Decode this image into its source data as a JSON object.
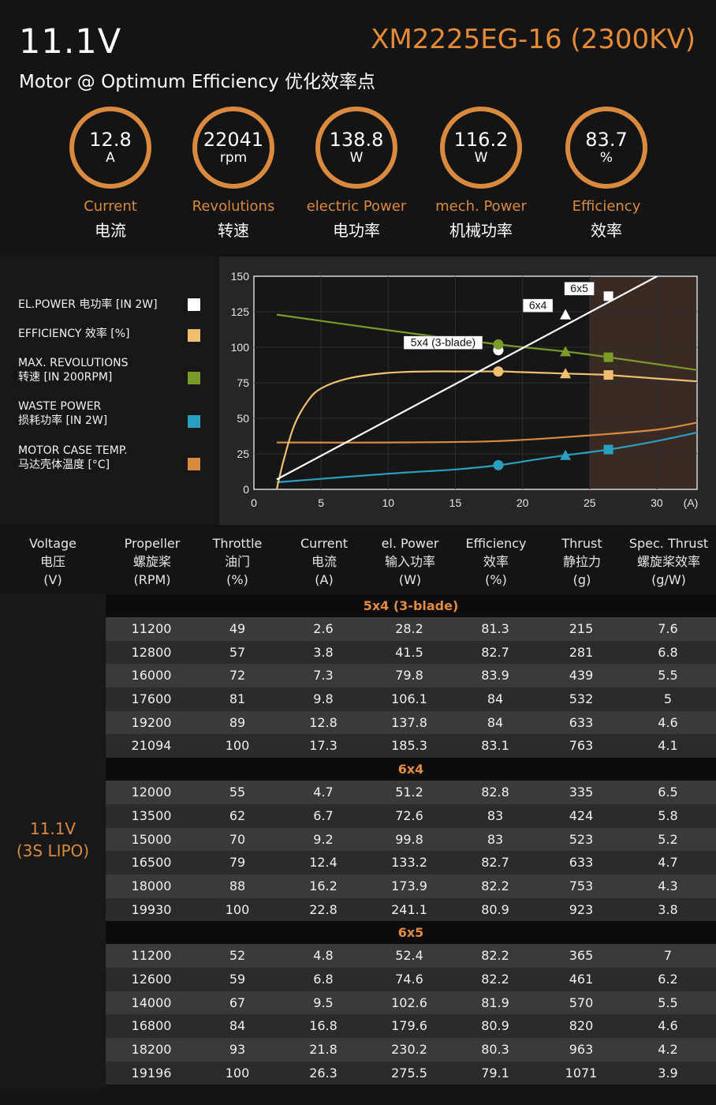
{
  "header": {
    "voltage": "11.1V",
    "model": "XM2225EG-16 (2300KV)",
    "subtitle": "Motor @ Optimum Efficiency  优化效率点"
  },
  "gauges": [
    {
      "value": "12.8",
      "unit": "A",
      "label_en": "Current",
      "label_cn": "电流"
    },
    {
      "value": "22041",
      "unit": "rpm",
      "label_en": "Revolutions",
      "label_cn": "转速"
    },
    {
      "value": "138.8",
      "unit": "W",
      "label_en": "electric Power",
      "label_cn": "电功率"
    },
    {
      "value": "116.2",
      "unit": "W",
      "label_en": "mech. Power",
      "label_cn": "机械功率"
    },
    {
      "value": "83.7",
      "unit": "%",
      "label_en": "Efficiency",
      "label_cn": "效率"
    }
  ],
  "legend": [
    {
      "line1": "EL.POWER 电功率 [IN 2W]",
      "line2": "",
      "color": "#ffffff"
    },
    {
      "line1": "EFFICIENCY 效率 [%]",
      "line2": "",
      "color": "#f0c070"
    },
    {
      "line1": "MAX. REVOLUTIONS",
      "line2": "转速 [IN 200RPM]",
      "color": "#7a9a2a"
    },
    {
      "line1": "WASTE POWER",
      "line2": "损耗功率 [IN 2W]",
      "color": "#2aa0c0"
    },
    {
      "line1": "MOTOR CASE TEMP.",
      "line2": "马达壳体温度 [°C]",
      "color": "#d98a3f"
    }
  ],
  "chart_data": {
    "type": "line",
    "xlim": [
      0,
      33
    ],
    "ylim": [
      0,
      150
    ],
    "x_ticks": [
      "0",
      "5",
      "10",
      "15",
      "20",
      "25",
      "30"
    ],
    "x_unit": "(A)",
    "y_ticks": [
      "0",
      "25",
      "50",
      "75",
      "100",
      "125",
      "150"
    ],
    "shaded_region": [
      25,
      33
    ],
    "series": [
      {
        "key": "elpower",
        "color": "#ffffff",
        "x": [
          1.7,
          33
        ],
        "y": [
          7,
          165
        ]
      },
      {
        "key": "efficiency",
        "color": "#f0c070",
        "x": [
          1.7,
          2.2,
          3,
          4,
          5,
          7,
          10,
          13,
          15,
          18.2,
          20,
          23.2,
          25,
          26.4,
          30,
          33
        ],
        "y": [
          0,
          20,
          45,
          62,
          71,
          78,
          82,
          83,
          83,
          83,
          82.5,
          81.5,
          81,
          80.5,
          78,
          76
        ]
      },
      {
        "key": "revolutions",
        "color": "#7a9a2a",
        "x": [
          1.7,
          10,
          18.2,
          23.2,
          26.4,
          33
        ],
        "y": [
          123,
          112,
          102,
          97,
          93,
          84
        ]
      },
      {
        "key": "waste",
        "color": "#2aa0c0",
        "x": [
          1.7,
          10,
          15,
          18.2,
          21,
          23.2,
          26.4,
          30,
          33
        ],
        "y": [
          5,
          11,
          14,
          17,
          21,
          24,
          28,
          34,
          40
        ]
      },
      {
        "key": "temp",
        "color": "#d98a3f",
        "x": [
          1.7,
          10,
          18.2,
          25,
          30,
          33
        ],
        "y": [
          33,
          33,
          34,
          38,
          42,
          47
        ]
      }
    ],
    "markers": [
      {
        "x": 18.2,
        "y": 98,
        "shape": "circle",
        "color": "#ffffff"
      },
      {
        "x": 18.2,
        "y": 102,
        "shape": "circle",
        "color": "#7a9a2a"
      },
      {
        "x": 18.2,
        "y": 83,
        "shape": "circle",
        "color": "#f0c070"
      },
      {
        "x": 18.2,
        "y": 17,
        "shape": "circle",
        "color": "#2aa0c0"
      },
      {
        "x": 23.2,
        "y": 123,
        "shape": "triangle",
        "color": "#ffffff"
      },
      {
        "x": 23.2,
        "y": 97,
        "shape": "triangle",
        "color": "#7a9a2a"
      },
      {
        "x": 23.2,
        "y": 81.5,
        "shape": "triangle",
        "color": "#f0c070"
      },
      {
        "x": 23.2,
        "y": 24,
        "shape": "triangle",
        "color": "#2aa0c0"
      },
      {
        "x": 26.4,
        "y": 136,
        "shape": "square",
        "color": "#ffffff"
      },
      {
        "x": 26.4,
        "y": 93,
        "shape": "square",
        "color": "#7a9a2a"
      },
      {
        "x": 26.4,
        "y": 80.5,
        "shape": "square",
        "color": "#f0c070"
      },
      {
        "x": 26.4,
        "y": 28,
        "shape": "square",
        "color": "#2aa0c0"
      }
    ],
    "annotations": [
      {
        "text": "5x4 (3-blade)",
        "x": 18.2,
        "y": 98
      },
      {
        "text": "6x4",
        "x": 23.2,
        "y": 123
      },
      {
        "text": "6x5",
        "x": 26.4,
        "y": 136
      }
    ]
  },
  "table": {
    "headers": [
      {
        "l1": "Voltage",
        "l2": "电压",
        "l3": "(V)"
      },
      {
        "l1": "Propeller",
        "l2": "螺旋桨",
        "l3": "(RPM)"
      },
      {
        "l1": "Throttle",
        "l2": "油门",
        "l3": "(%)"
      },
      {
        "l1": "Current",
        "l2": "电流",
        "l3": "(A)"
      },
      {
        "l1": "el. Power",
        "l2": "输入功率",
        "l3": "(W)"
      },
      {
        "l1": "Efficiency",
        "l2": "效率",
        "l3": "(%)"
      },
      {
        "l1": "Thrust",
        "l2": "静拉力",
        "l3": "(g)"
      },
      {
        "l1": "Spec. Thrust",
        "l2": "螺旋桨效率",
        "l3": "(g/W)"
      }
    ],
    "voltage_line1": "11.1V",
    "voltage_line2": "(3S LIPO)",
    "groups": [
      {
        "name": "5x4 (3-blade)",
        "rows": [
          [
            "11200",
            "49",
            "2.6",
            "28.2",
            "81.3",
            "215",
            "7.6"
          ],
          [
            "12800",
            "57",
            "3.8",
            "41.5",
            "82.7",
            "281",
            "6.8"
          ],
          [
            "16000",
            "72",
            "7.3",
            "79.8",
            "83.9",
            "439",
            "5.5"
          ],
          [
            "17600",
            "81",
            "9.8",
            "106.1",
            "84",
            "532",
            "5"
          ],
          [
            "19200",
            "89",
            "12.8",
            "137.8",
            "84",
            "633",
            "4.6"
          ],
          [
            "21094",
            "100",
            "17.3",
            "185.3",
            "83.1",
            "763",
            "4.1"
          ]
        ]
      },
      {
        "name": "6x4",
        "rows": [
          [
            "12000",
            "55",
            "4.7",
            "51.2",
            "82.8",
            "335",
            "6.5"
          ],
          [
            "13500",
            "62",
            "6.7",
            "72.6",
            "83",
            "424",
            "5.8"
          ],
          [
            "15000",
            "70",
            "9.2",
            "99.8",
            "83",
            "523",
            "5.2"
          ],
          [
            "16500",
            "79",
            "12.4",
            "133.2",
            "82.7",
            "633",
            "4.7"
          ],
          [
            "18000",
            "88",
            "16.2",
            "173.9",
            "82.2",
            "753",
            "4.3"
          ],
          [
            "19930",
            "100",
            "22.8",
            "241.1",
            "80.9",
            "923",
            "3.8"
          ]
        ]
      },
      {
        "name": "6x5",
        "rows": [
          [
            "11200",
            "52",
            "4.8",
            "52.4",
            "82.2",
            "365",
            "7"
          ],
          [
            "12600",
            "59",
            "6.8",
            "74.6",
            "82.2",
            "461",
            "6.2"
          ],
          [
            "14000",
            "67",
            "9.5",
            "102.6",
            "81.9",
            "570",
            "5.5"
          ],
          [
            "16800",
            "84",
            "16.8",
            "179.6",
            "80.9",
            "820",
            "4.6"
          ],
          [
            "18200",
            "93",
            "21.8",
            "230.2",
            "80.3",
            "963",
            "4.2"
          ],
          [
            "19196",
            "100",
            "26.3",
            "275.5",
            "79.1",
            "1071",
            "3.9"
          ]
        ]
      }
    ]
  }
}
